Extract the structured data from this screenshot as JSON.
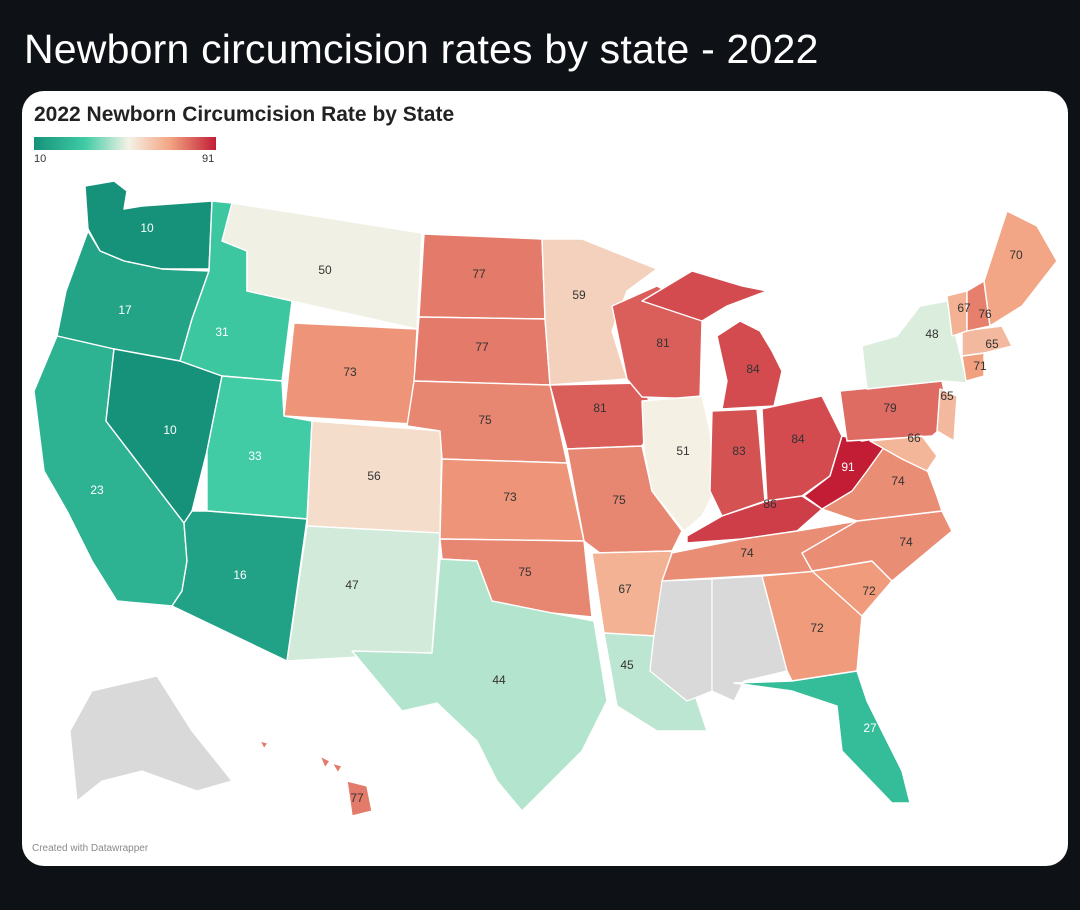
{
  "headline": "Newborn circumcision rates by state - 2022",
  "map": {
    "title": "2022 Newborn Circumcision Rate by State",
    "credit": "Created with Datawrapper",
    "legend": {
      "min": "10",
      "max": "91"
    },
    "colors": {
      "low": "#16927a",
      "mid": "#f5f2e6",
      "high": "#c21d35",
      "no_data": "#d9d9d9"
    }
  },
  "chart_data": {
    "type": "choropleth",
    "title": "2022 Newborn Circumcision Rate by State",
    "scale": [
      10,
      91
    ],
    "states": [
      {
        "state": "WA",
        "value": 10
      },
      {
        "state": "OR",
        "value": 17
      },
      {
        "state": "CA",
        "value": 23
      },
      {
        "state": "NV",
        "value": 10
      },
      {
        "state": "ID",
        "value": 31
      },
      {
        "state": "MT",
        "value": 50
      },
      {
        "state": "WY",
        "value": 73
      },
      {
        "state": "UT",
        "value": 33
      },
      {
        "state": "AZ",
        "value": 16
      },
      {
        "state": "CO",
        "value": 56
      },
      {
        "state": "NM",
        "value": 47
      },
      {
        "state": "ND",
        "value": 77
      },
      {
        "state": "SD",
        "value": 77
      },
      {
        "state": "NE",
        "value": 75
      },
      {
        "state": "KS",
        "value": 73
      },
      {
        "state": "OK",
        "value": 75
      },
      {
        "state": "TX",
        "value": 44
      },
      {
        "state": "MN",
        "value": 59
      },
      {
        "state": "IA",
        "value": 81
      },
      {
        "state": "MO",
        "value": 75
      },
      {
        "state": "AR",
        "value": 67
      },
      {
        "state": "LA",
        "value": 45
      },
      {
        "state": "WI",
        "value": 81
      },
      {
        "state": "IL",
        "value": 51
      },
      {
        "state": "MI",
        "value": 84
      },
      {
        "state": "IN",
        "value": 83
      },
      {
        "state": "OH",
        "value": 84
      },
      {
        "state": "KY",
        "value": 86
      },
      {
        "state": "TN",
        "value": 74
      },
      {
        "state": "MS",
        "value": null
      },
      {
        "state": "AL",
        "value": null
      },
      {
        "state": "GA",
        "value": 72
      },
      {
        "state": "FL",
        "value": 27
      },
      {
        "state": "SC",
        "value": 72
      },
      {
        "state": "NC",
        "value": 74
      },
      {
        "state": "VA",
        "value": 74
      },
      {
        "state": "WV",
        "value": 91
      },
      {
        "state": "PA",
        "value": 79
      },
      {
        "state": "NY",
        "value": 48
      },
      {
        "state": "MD",
        "value": 66
      },
      {
        "state": "NJ",
        "value": 65
      },
      {
        "state": "CT",
        "value": 71
      },
      {
        "state": "MA",
        "value": 65
      },
      {
        "state": "VT",
        "value": 67
      },
      {
        "state": "NH",
        "value": 76
      },
      {
        "state": "ME",
        "value": 70
      },
      {
        "state": "HI",
        "value": 77
      },
      {
        "state": "AK",
        "value": null
      }
    ]
  }
}
